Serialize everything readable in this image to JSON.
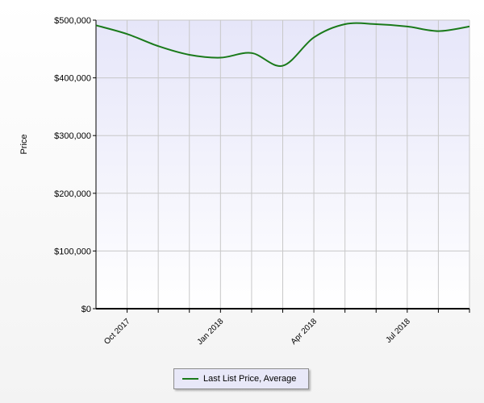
{
  "chart_data": {
    "type": "line",
    "ylabel": "Price",
    "xlabel": "",
    "ylim": [
      0,
      500000
    ],
    "y_ticks": [
      "$0",
      "$100,000",
      "$200,000",
      "$300,000",
      "$400,000",
      "$500,000"
    ],
    "y_tick_values": [
      0,
      100000,
      200000,
      300000,
      400000,
      500000
    ],
    "x_tick_labels": [
      "Oct 2017",
      "Jan 2018",
      "Apr 2018",
      "Jul 2018"
    ],
    "x_tick_months": [
      "2017-10",
      "2018-01",
      "2018-04",
      "2018-07"
    ],
    "x_range": [
      "2017-09",
      "2018-09"
    ],
    "grid": true,
    "legend_position": "bottom-center",
    "series": [
      {
        "name": "Last List Price, Average",
        "color": "#1a7a1a",
        "x": [
          "2017-09",
          "2017-10",
          "2017-11",
          "2017-12",
          "2018-01",
          "2018-02",
          "2018-03",
          "2018-04",
          "2018-05",
          "2018-06",
          "2018-07",
          "2018-08",
          "2018-09"
        ],
        "values": [
          491000,
          476000,
          455000,
          440000,
          435000,
          443000,
          421000,
          470000,
          493000,
          493000,
          489000,
          481000,
          489000
        ]
      }
    ]
  },
  "colors": {
    "plot_bg_top": "#e6e6f9",
    "plot_bg_bottom": "#ffffff",
    "grid": "#c8c8c8",
    "axis": "#000000"
  }
}
